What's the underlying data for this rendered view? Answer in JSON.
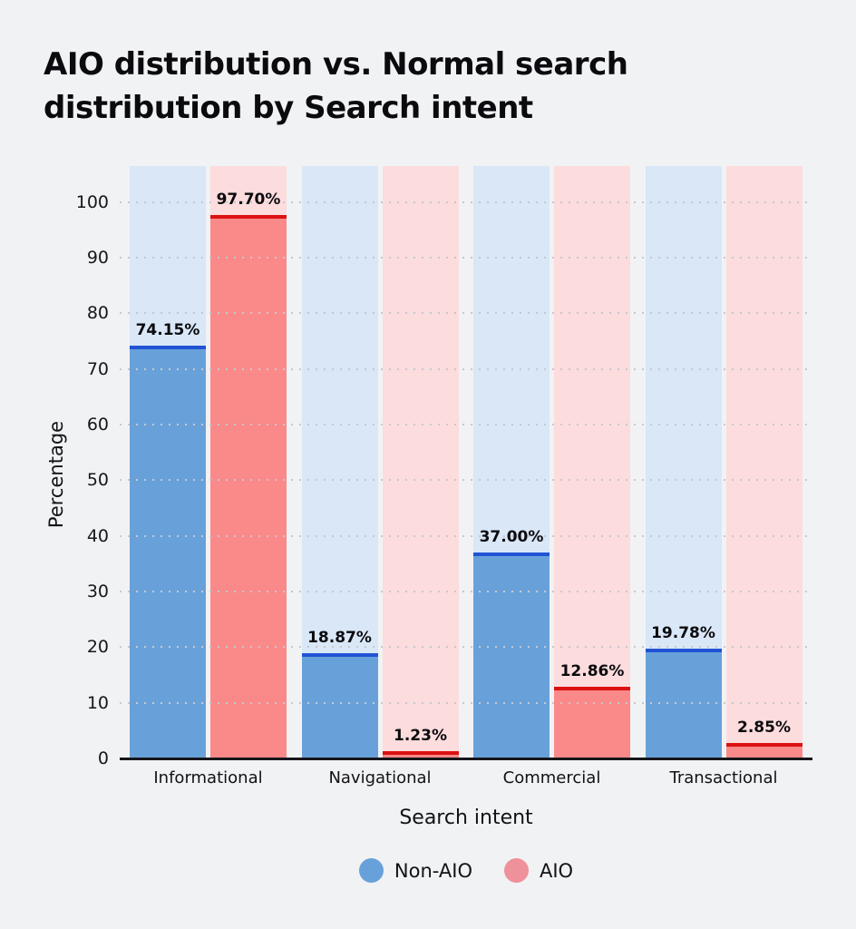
{
  "page": {
    "background": "#f1f2f4"
  },
  "title": {
    "full": "AIO distribution vs. Normal search distribution by Search intent",
    "line1": "AIO distribution vs. Normal search",
    "line2": "distribution by Search intent"
  },
  "chart_data": {
    "type": "bar",
    "title": "AIO distribution vs. Normal search distribution by Search intent",
    "categories": [
      "Informational",
      "Navigational",
      "Commercial",
      "Transactional"
    ],
    "series": [
      {
        "name": "Non-AIO",
        "values": [
          74.15,
          18.87,
          37.0,
          19.78
        ],
        "display_labels": [
          "74.15%",
          "18.87%",
          "37.00%",
          "19.78%"
        ],
        "bar_color": "#68a1da",
        "edge_color": "#2253d4",
        "track_color": "#d9e7f7",
        "legend_color": "#68a1da"
      },
      {
        "name": "AIO",
        "values": [
          97.7,
          1.23,
          12.86,
          2.85
        ],
        "display_labels": [
          "97.70%",
          "1.23%",
          "12.86%",
          "2.85%"
        ],
        "bar_color": "#fa8989",
        "edge_color": "#dc1111",
        "track_color": "#fcdcdd",
        "legend_color": "#ef919a"
      }
    ],
    "xlabel": "Search intent",
    "ylabel": "Percentage",
    "ylim": [
      0,
      106.5
    ],
    "yticks": [
      0,
      10,
      20,
      30,
      40,
      50,
      60,
      70,
      80,
      90,
      100
    ],
    "grid": "dotted-horizontal",
    "legend_position": "bottom",
    "colors": {
      "grid_dot": "#c7c8cc",
      "axis_line": "#17171b",
      "text": "#121217"
    }
  }
}
